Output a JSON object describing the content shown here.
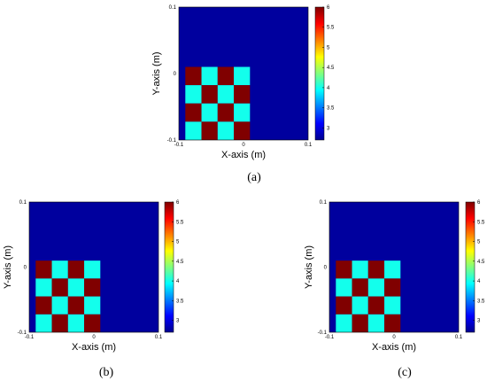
{
  "chart_data": [
    {
      "type": "heatmap",
      "panel": "(a)",
      "xlabel": "X-axis (m)",
      "ylabel": "Y-axis (m)",
      "xlim": [
        -0.1,
        0.1
      ],
      "ylim": [
        -0.1,
        0.1
      ],
      "x_ticks": [
        "-0.1",
        "0",
        "0.1"
      ],
      "y_ticks": [
        "0.1",
        "0",
        "-0.1"
      ],
      "colorbar": {
        "min": 2.7,
        "max": 6,
        "ticks": [
          "6",
          "5.5",
          "5",
          "4.5",
          "4",
          "3.5",
          "3"
        ]
      },
      "background_value": 2.8,
      "checkerboard": {
        "x_range": [
          -0.09,
          0.01
        ],
        "y_range": [
          -0.1,
          0.01
        ],
        "rows": 4,
        "cols": 4,
        "values": [
          [
            6,
            4,
            6,
            4
          ],
          [
            4,
            6,
            4,
            6
          ],
          [
            6,
            4,
            6,
            4
          ],
          [
            4,
            6,
            4,
            6
          ]
        ]
      }
    },
    {
      "type": "heatmap",
      "panel": "(b)",
      "xlabel": "X-axis (m)",
      "ylabel": "Y-axis (m)",
      "xlim": [
        -0.1,
        0.1
      ],
      "ylim": [
        -0.1,
        0.1
      ],
      "x_ticks": [
        "-0.1",
        "0",
        "0.1"
      ],
      "y_ticks": [
        "0.1",
        "0",
        "-0.1"
      ],
      "colorbar": {
        "min": 2.7,
        "max": 6,
        "ticks": [
          "6",
          "5.5",
          "5",
          "4.5",
          "4",
          "3.5",
          "3"
        ]
      },
      "background_value": 2.8,
      "checkerboard": {
        "x_range": [
          -0.09,
          0.01
        ],
        "y_range": [
          -0.1,
          0.01
        ],
        "rows": 4,
        "cols": 4,
        "values": [
          [
            6,
            4,
            6,
            4
          ],
          [
            4,
            6,
            4,
            6
          ],
          [
            6,
            4,
            6,
            4
          ],
          [
            4,
            6,
            4,
            6
          ]
        ]
      }
    },
    {
      "type": "heatmap",
      "panel": "(c)",
      "xlabel": "X-axis (m)",
      "ylabel": "Y-axis (m)",
      "xlim": [
        -0.1,
        0.1
      ],
      "ylim": [
        -0.1,
        0.1
      ],
      "x_ticks": [
        "-0.1",
        "0",
        "0.1"
      ],
      "y_ticks": [
        "0.1",
        "0",
        "-0.1"
      ],
      "colorbar": {
        "min": 2.7,
        "max": 6,
        "ticks": [
          "6",
          "5.5",
          "5",
          "4.5",
          "4",
          "3.5",
          "3"
        ]
      },
      "background_value": 2.8,
      "checkerboard": {
        "x_range": [
          -0.09,
          0.01
        ],
        "y_range": [
          -0.1,
          0.01
        ],
        "rows": 4,
        "cols": 4,
        "values": [
          [
            6,
            4,
            6,
            4
          ],
          [
            4,
            6,
            4,
            6
          ],
          [
            6,
            4,
            6,
            4
          ],
          [
            4,
            6,
            4,
            6
          ]
        ]
      }
    }
  ]
}
